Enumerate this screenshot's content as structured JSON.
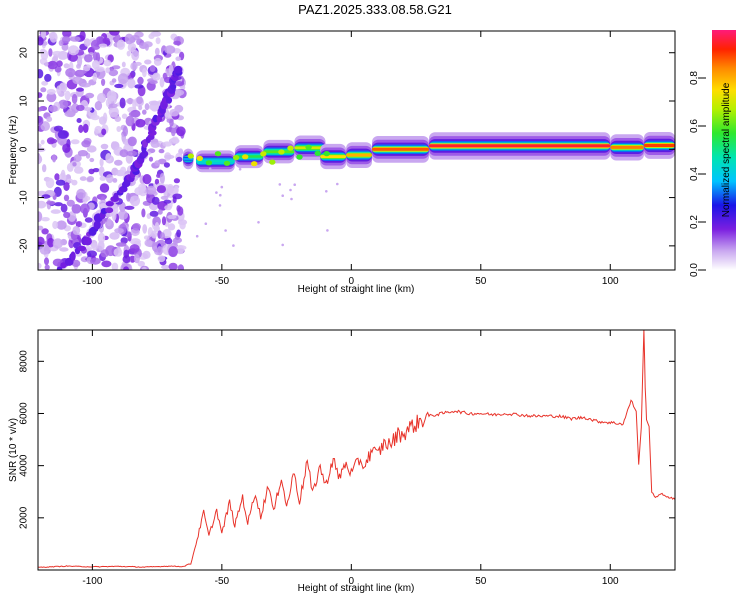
{
  "title": "PAZ1.2025.333.08.58.G21",
  "chart_data": [
    {
      "type": "heatmap",
      "name": "spectrogram",
      "xlabel": "Height of straight line (km)",
      "ylabel": "Frequency (Hz)",
      "xlim": [
        -121,
        125
      ],
      "ylim": [
        -25,
        24.5
      ],
      "xticks": [
        -100,
        -50,
        0,
        50,
        100
      ],
      "yticks": [
        -20,
        -10,
        0,
        10,
        20
      ],
      "noise_region_x": [
        -121,
        -65
      ],
      "noise_track": [
        [
          -112,
          -25
        ],
        [
          -100,
          -17
        ],
        [
          -90,
          -9
        ],
        [
          -83,
          -4
        ],
        [
          -78,
          3
        ],
        [
          -73,
          8
        ],
        [
          -69,
          13
        ],
        [
          -66,
          17
        ]
      ],
      "ridge_segments": [
        {
          "x": [
            -65,
            -61
          ],
          "f": -2.0,
          "amp": 0.35
        },
        {
          "x": [
            -60,
            -45
          ],
          "f": -2.5,
          "amp": 0.45
        },
        {
          "x": [
            -45,
            -34
          ],
          "f": -1.5,
          "amp": 0.55
        },
        {
          "x": [
            -34,
            -22
          ],
          "f": -0.5,
          "amp": 0.6
        },
        {
          "x": [
            -22,
            -10
          ],
          "f": 0.3,
          "amp": 0.7
        },
        {
          "x": [
            -12,
            -2
          ],
          "f": -1.5,
          "amp": 0.75
        },
        {
          "x": [
            -2,
            8
          ],
          "f": -1.2,
          "amp": 0.8
        },
        {
          "x": [
            8,
            30
          ],
          "f": 0.0,
          "amp": 0.88
        },
        {
          "x": [
            30,
            100
          ],
          "f": 0.7,
          "amp": 0.95
        },
        {
          "x": [
            100,
            113
          ],
          "f": 0.4,
          "amp": 0.85
        },
        {
          "x": [
            113,
            125
          ],
          "f": 0.8,
          "amp": 0.9
        }
      ],
      "colorbar": {
        "label": "Normalized spectral amplitude",
        "range": [
          0,
          1
        ],
        "ticks": [
          0.0,
          0.2,
          0.4,
          0.6,
          0.8
        ],
        "tick_labels": [
          "0.0",
          "0.2",
          "0.4",
          "0.6",
          "0.8"
        ]
      }
    },
    {
      "type": "line",
      "name": "snr",
      "xlabel": "Height of straight line (km)",
      "ylabel": "SNR (10 * v/v)",
      "xlim": [
        -121,
        125
      ],
      "ylim": [
        0,
        9200
      ],
      "xticks": [
        -100,
        -50,
        0,
        50,
        100
      ],
      "yticks": [
        2000,
        4000,
        6000,
        8000
      ],
      "color": "#e8332a",
      "series": [
        {
          "name": "SNR",
          "x": [
            -121,
            -110,
            -100,
            -90,
            -80,
            -70,
            -65,
            -62,
            -60,
            -57,
            -55,
            -52,
            -50,
            -47,
            -45,
            -42,
            -40,
            -37,
            -35,
            -32,
            -30,
            -27,
            -25,
            -22,
            -20,
            -17,
            -15,
            -12,
            -10,
            -7,
            -5,
            -2,
            0,
            3,
            5,
            8,
            10,
            13,
            15,
            18,
            20,
            23,
            25,
            28,
            30,
            35,
            40,
            45,
            50,
            55,
            60,
            65,
            70,
            75,
            80,
            85,
            90,
            95,
            100,
            105,
            108,
            110,
            111,
            112,
            113,
            113.5,
            114,
            115,
            116,
            117,
            120,
            125
          ],
          "y": [
            100,
            150,
            120,
            140,
            110,
            150,
            130,
            250,
            1000,
            2200,
            1300,
            2300,
            1400,
            2600,
            1700,
            2800,
            1800,
            3000,
            2000,
            3300,
            2200,
            3600,
            2400,
            3800,
            2600,
            4200,
            2900,
            4000,
            3200,
            4300,
            3500,
            4100,
            3700,
            4200,
            4000,
            4600,
            4400,
            4900,
            4800,
            5200,
            5200,
            5500,
            5600,
            5800,
            5900,
            6000,
            6100,
            6000,
            6000,
            5950,
            6000,
            5950,
            5900,
            5900,
            5900,
            5800,
            5850,
            5700,
            5650,
            5600,
            6500,
            6100,
            4000,
            5500,
            9200,
            7000,
            5800,
            5500,
            3000,
            2800,
            2900,
            2700
          ]
        }
      ]
    }
  ]
}
